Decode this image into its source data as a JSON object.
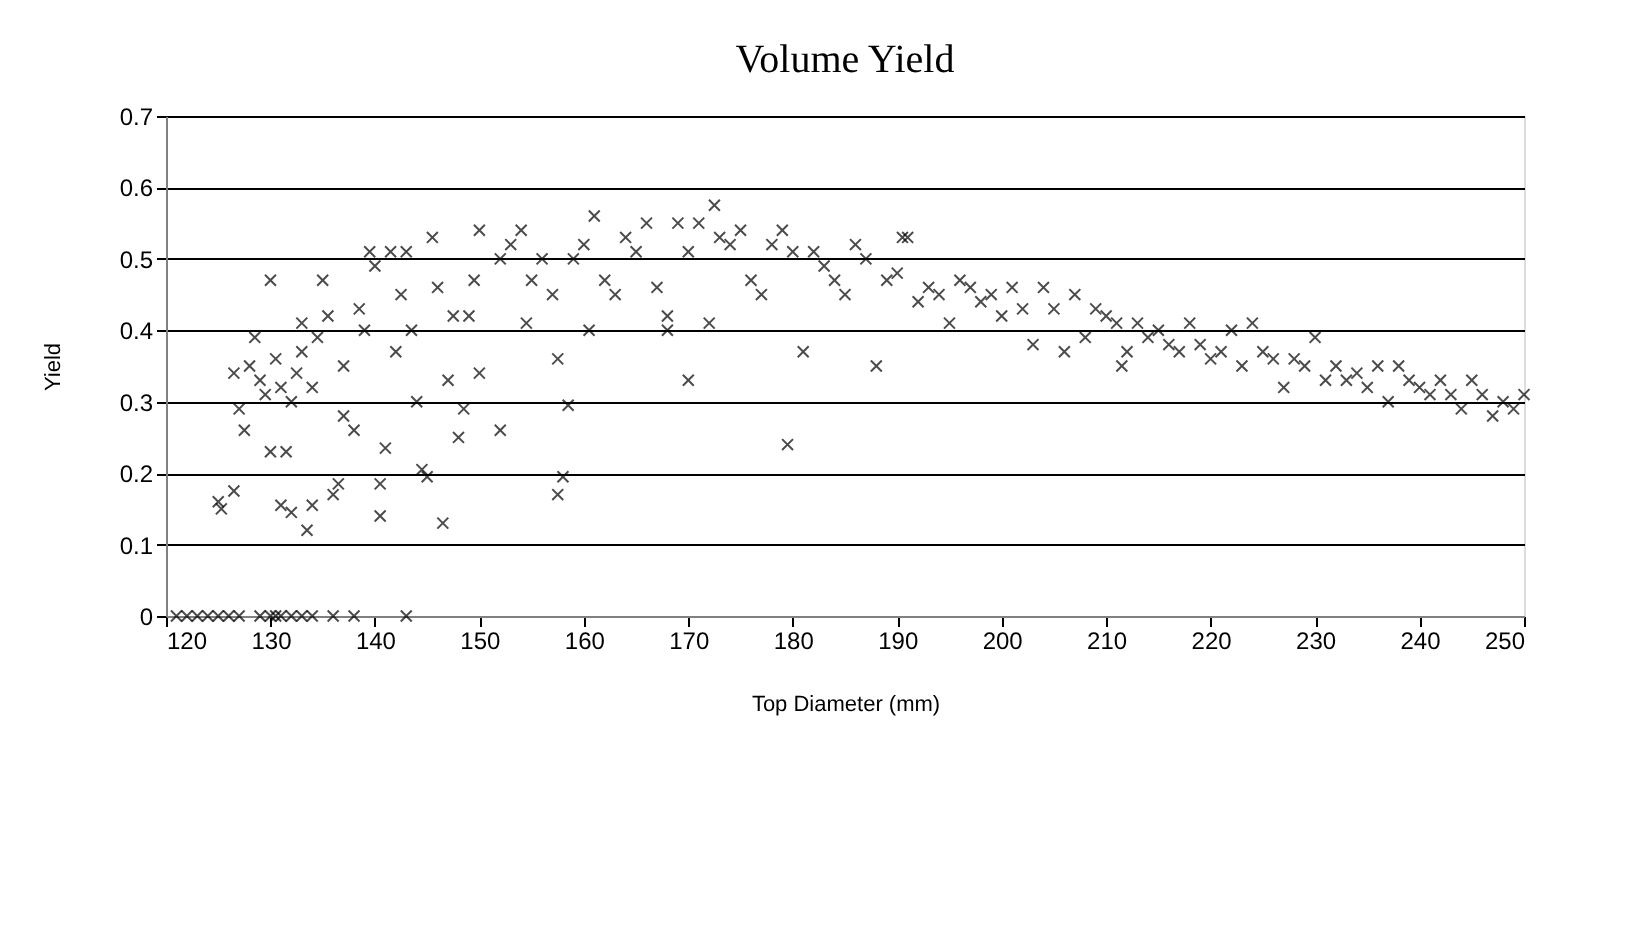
{
  "chart_data": {
    "type": "scatter",
    "title": "Volume Yield",
    "xlabel": "Top Diameter  (mm)",
    "ylabel": "Yield",
    "xlim": [
      120,
      250
    ],
    "xticks": [
      120,
      130,
      140,
      150,
      160,
      170,
      180,
      190,
      200,
      210,
      220,
      230,
      240,
      250
    ],
    "ylim": [
      0,
      0.7
    ],
    "yticks": [
      0,
      0.1,
      0.2,
      0.3,
      0.4,
      0.5,
      0.6,
      0.7
    ],
    "grid": "y",
    "marker": "cross",
    "x": [
      121,
      122,
      123,
      124,
      125,
      126,
      127,
      129,
      130,
      130.5,
      131,
      132,
      133,
      134,
      136,
      138,
      143,
      125,
      125.3,
      126.5,
      127,
      127.5,
      126.5,
      128,
      128.5,
      129,
      129.5,
      130,
      130,
      130.5,
      131,
      131.5,
      131,
      132,
      132,
      132.5,
      133,
      133,
      133.5,
      134,
      134,
      134.5,
      135,
      135.5,
      136,
      136.5,
      137,
      137,
      138,
      138.5,
      139,
      139.5,
      140,
      140.5,
      140.5,
      141,
      141.5,
      142,
      142.5,
      143,
      143.5,
      144,
      144.5,
      145,
      145.5,
      146,
      146.5,
      147,
      147.5,
      148,
      148.5,
      149,
      149.5,
      150,
      150,
      152,
      152,
      153,
      154,
      154.5,
      155,
      156,
      157,
      157.5,
      157.5,
      158,
      158.5,
      159,
      160,
      160.5,
      161,
      162,
      163,
      164,
      165,
      166,
      167,
      168,
      168,
      169,
      170,
      170,
      171,
      172,
      172.5,
      173,
      174,
      175,
      176,
      177,
      178,
      179,
      179.5,
      180,
      181,
      182,
      183,
      184,
      185,
      186,
      187,
      188,
      189,
      190,
      190.5,
      191,
      192,
      193,
      194,
      195,
      196,
      197,
      198,
      199,
      200,
      201,
      202,
      203,
      204,
      205,
      206,
      207,
      208,
      209,
      210,
      211,
      211.5,
      212,
      213,
      214,
      215,
      216,
      217,
      218,
      219,
      220,
      221,
      222,
      223,
      224,
      225,
      226,
      227,
      228,
      229,
      230,
      231,
      232,
      233,
      234,
      235,
      236,
      237,
      238,
      239,
      240,
      241,
      242,
      243,
      244,
      245,
      246,
      247,
      248,
      249,
      250
    ],
    "values": [
      0,
      0,
      0,
      0,
      0,
      0,
      0,
      0,
      0,
      0,
      0,
      0,
      0,
      0,
      0,
      0,
      0,
      0.16,
      0.15,
      0.175,
      0.29,
      0.26,
      0.34,
      0.35,
      0.39,
      0.33,
      0.31,
      0.47,
      0.23,
      0.36,
      0.32,
      0.23,
      0.155,
      0.145,
      0.3,
      0.34,
      0.41,
      0.37,
      0.12,
      0.155,
      0.32,
      0.39,
      0.47,
      0.42,
      0.17,
      0.185,
      0.28,
      0.35,
      0.26,
      0.43,
      0.4,
      0.51,
      0.49,
      0.185,
      0.14,
      0.235,
      0.51,
      0.37,
      0.45,
      0.51,
      0.4,
      0.3,
      0.205,
      0.195,
      0.53,
      0.46,
      0.13,
      0.33,
      0.42,
      0.25,
      0.29,
      0.42,
      0.47,
      0.54,
      0.34,
      0.26,
      0.5,
      0.52,
      0.54,
      0.41,
      0.47,
      0.5,
      0.45,
      0.36,
      0.17,
      0.195,
      0.295,
      0.5,
      0.52,
      0.4,
      0.56,
      0.47,
      0.45,
      0.53,
      0.51,
      0.55,
      0.46,
      0.42,
      0.4,
      0.55,
      0.51,
      0.33,
      0.55,
      0.41,
      0.575,
      0.53,
      0.52,
      0.54,
      0.47,
      0.45,
      0.52,
      0.54,
      0.24,
      0.51,
      0.37,
      0.51,
      0.49,
      0.47,
      0.45,
      0.52,
      0.5,
      0.35,
      0.47,
      0.48,
      0.53,
      0.53,
      0.44,
      0.46,
      0.45,
      0.41,
      0.47,
      0.46,
      0.44,
      0.45,
      0.42,
      0.46,
      0.43,
      0.38,
      0.46,
      0.43,
      0.37,
      0.45,
      0.39,
      0.43,
      0.42,
      0.41,
      0.35,
      0.37,
      0.41,
      0.39,
      0.4,
      0.38,
      0.37,
      0.41,
      0.38,
      0.36,
      0.37,
      0.4,
      0.35,
      0.41,
      0.37,
      0.36,
      0.32,
      0.36,
      0.35,
      0.39,
      0.33,
      0.35,
      0.33,
      0.34,
      0.32,
      0.35,
      0.3,
      0.35,
      0.33,
      0.32,
      0.31,
      0.33,
      0.31,
      0.29,
      0.33,
      0.31,
      0.28,
      0.3,
      0.29,
      0.31
    ],
    "color": "#000000"
  }
}
